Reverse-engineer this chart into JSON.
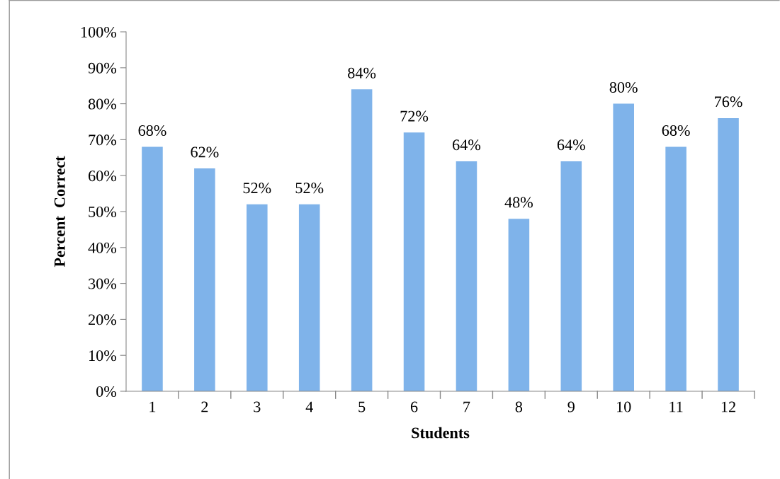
{
  "chart_data": {
    "type": "bar",
    "xlabel": "Students",
    "ylabel": "Percent  Correct",
    "categories": [
      "1",
      "2",
      "3",
      "4",
      "5",
      "6",
      "7",
      "8",
      "9",
      "10",
      "11",
      "12"
    ],
    "values": [
      68,
      62,
      52,
      52,
      84,
      72,
      64,
      48,
      64,
      80,
      68,
      76
    ],
    "value_labels": [
      "68%",
      "62%",
      "52%",
      "52%",
      "84%",
      "72%",
      "64%",
      "48%",
      "64%",
      "80%",
      "68%",
      "76%"
    ],
    "color": "#7fb3ea",
    "ylim": [
      0,
      100
    ],
    "yticks": [
      {
        "value": 0,
        "label": "0%"
      },
      {
        "value": 10,
        "label": "10%"
      },
      {
        "value": 20,
        "label": "20%"
      },
      {
        "value": 30,
        "label": "30%"
      },
      {
        "value": 40,
        "label": "40%"
      },
      {
        "value": 50,
        "label": "50%"
      },
      {
        "value": 60,
        "label": "60%"
      },
      {
        "value": 70,
        "label": "70%"
      },
      {
        "value": 80,
        "label": "80%"
      },
      {
        "value": 90,
        "label": "90%"
      },
      {
        "value": 100,
        "label": "100%"
      }
    ],
    "grid": false,
    "legend": false
  }
}
